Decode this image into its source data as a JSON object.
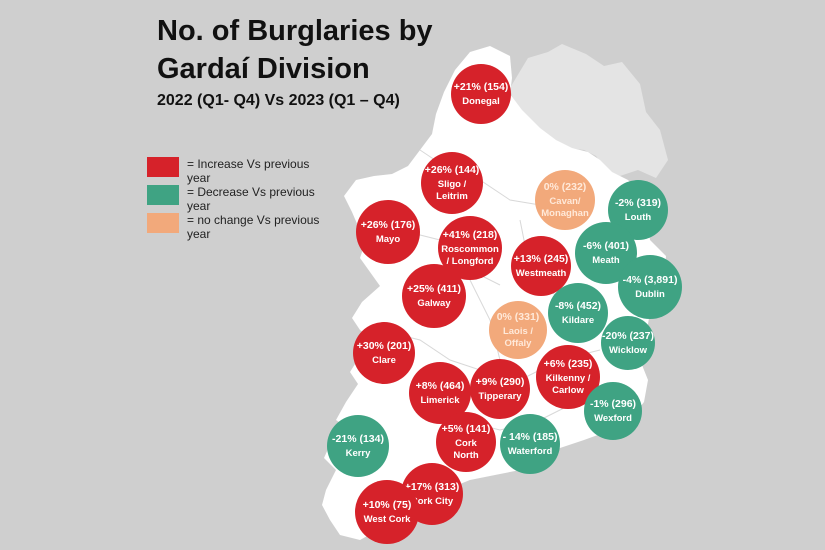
{
  "title_line1": "No. of Burglaries by",
  "title_line2": "Gardaí Division",
  "subtitle": "2022 (Q1- Q4) Vs 2023 (Q1 – Q4)",
  "colors": {
    "background": "#cfcfcf",
    "land": "#ffffff",
    "northern_ireland": "#e4e4e4",
    "increase": "#d6222a",
    "decrease": "#3fa383",
    "no_change": "#f2a97b"
  },
  "legend": [
    {
      "status": "increase",
      "label": "= Increase Vs previous year"
    },
    {
      "status": "decrease",
      "label": "= Decrease Vs previous year"
    },
    {
      "status": "no_change",
      "label": "= no change Vs previous year"
    }
  ],
  "divisions": [
    {
      "name": "Donegal",
      "change": "+21% (154)",
      "status": "increase"
    },
    {
      "name": "Sligo / Leitrim",
      "change": "+26% (144)",
      "status": "increase"
    },
    {
      "name": "Mayo",
      "change": "+26% (176)",
      "status": "increase"
    },
    {
      "name": "Cavan/ Monaghan",
      "change": "0% (232)",
      "status": "no_change"
    },
    {
      "name": "Louth",
      "change": "-2% (319)",
      "status": "decrease"
    },
    {
      "name": "Roscommon / Longford",
      "change": "+41% (218)",
      "status": "increase"
    },
    {
      "name": "Westmeath",
      "change": "+13% (245)",
      "status": "increase"
    },
    {
      "name": "Meath",
      "change": "-6% (401)",
      "status": "decrease"
    },
    {
      "name": "Dublin",
      "change": "-4% (3,891)",
      "status": "decrease"
    },
    {
      "name": "Galway",
      "change": "+25% (411)",
      "status": "increase"
    },
    {
      "name": "Laois / Offaly",
      "change": "0% (331)",
      "status": "no_change"
    },
    {
      "name": "Kildare",
      "change": "-8% (452)",
      "status": "decrease"
    },
    {
      "name": "Wicklow",
      "change": "-20% (237)",
      "status": "decrease"
    },
    {
      "name": "Clare",
      "change": "+30% (201)",
      "status": "increase"
    },
    {
      "name": "Kilkenny / Carlow",
      "change": "+6% (235)",
      "status": "increase"
    },
    {
      "name": "Limerick",
      "change": "+8% (464)",
      "status": "increase"
    },
    {
      "name": "Tipperary",
      "change": "+9% (290)",
      "status": "increase"
    },
    {
      "name": "Wexford",
      "change": "-1% (296)",
      "status": "decrease"
    },
    {
      "name": "Kerry",
      "change": "-21% (134)",
      "status": "decrease"
    },
    {
      "name": "Cork North",
      "change": "+5% (141)",
      "status": "increase"
    },
    {
      "name": "Waterford",
      "change": "- 14% (185)",
      "status": "decrease"
    },
    {
      "name": "Cork City",
      "change": "+17% (313)",
      "status": "increase"
    },
    {
      "name": "West Cork",
      "change": "+10% (75)",
      "status": "increase"
    }
  ]
}
